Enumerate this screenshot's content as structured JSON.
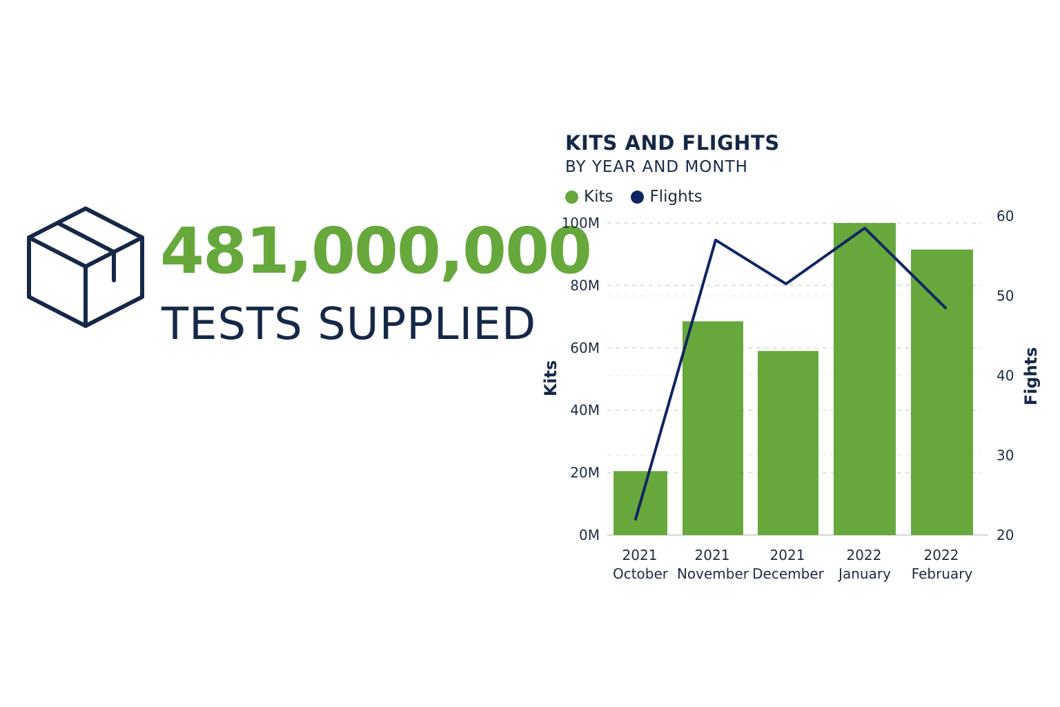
{
  "kpi": {
    "value": "481,000,000",
    "label": "TESTS SUPPLIED",
    "icon": "box-icon"
  },
  "colors": {
    "green": "#66a83c",
    "navy": "#152848",
    "line": "#0f2563",
    "grid": "#d9d9d9",
    "text": "#1e2a3e"
  },
  "chart_data": {
    "type": "bar",
    "title": "KITS AND FLIGHTS",
    "subtitle": "BY YEAR AND MONTH",
    "legend": [
      {
        "name": "Kits",
        "color": "#66a83c"
      },
      {
        "name": "Flights",
        "color": "#0f2563"
      }
    ],
    "legend_position": "top-left",
    "categories": [
      [
        "2021",
        "October"
      ],
      [
        "2021",
        "November"
      ],
      [
        "2021",
        "December"
      ],
      [
        "2022",
        "January"
      ],
      [
        "2022",
        "February"
      ]
    ],
    "series": [
      {
        "name": "Kits",
        "type": "bar",
        "axis": "left",
        "values": [
          20500000,
          68500000,
          59000000,
          100000000,
          91500000
        ]
      },
      {
        "name": "Flights",
        "type": "line",
        "axis": "right",
        "values": [
          22,
          57,
          51.5,
          58.5,
          48.5
        ]
      }
    ],
    "y_left": {
      "label": "Kits",
      "range": [
        0,
        100000000
      ],
      "ticks": [
        0,
        20000000,
        40000000,
        60000000,
        80000000,
        100000000
      ],
      "tick_labels": [
        "0M",
        "20M",
        "40M",
        "60M",
        "80M",
        "100M"
      ]
    },
    "y_right": {
      "label": "Fights",
      "range": [
        20,
        60
      ],
      "ticks": [
        20,
        30,
        40,
        50,
        60
      ],
      "tick_labels": [
        "20",
        "30",
        "40",
        "50",
        "60"
      ]
    },
    "grid": true
  }
}
